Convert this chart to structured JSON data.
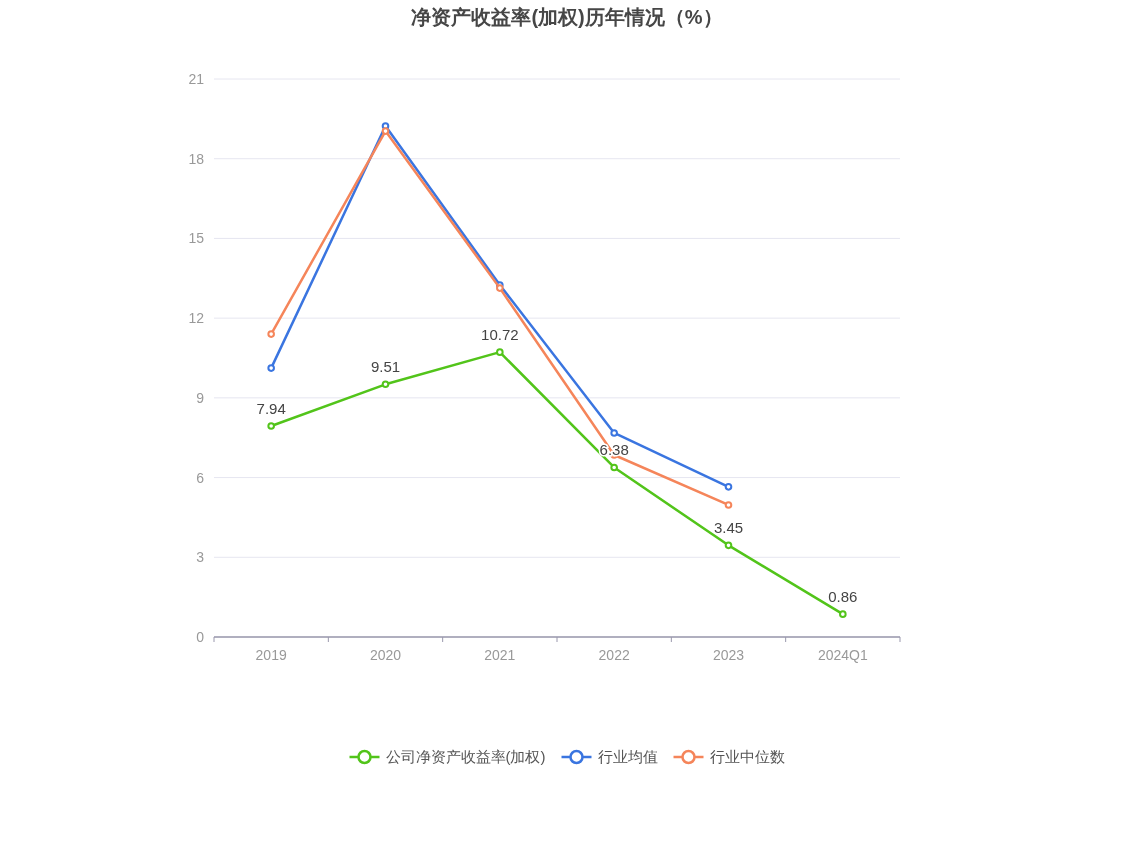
{
  "chart_data": {
    "type": "line",
    "title": "净资产收益率(加权)历年情况（%）",
    "categories": [
      "2019",
      "2020",
      "2021",
      "2022",
      "2023",
      "2024Q1"
    ],
    "ylim": [
      0,
      21
    ],
    "yticks": [
      0,
      3,
      6,
      9,
      12,
      15,
      18,
      21
    ],
    "grid": "y",
    "legend": "bottom",
    "marker": "circle",
    "line_style": "solid",
    "series": [
      {
        "name": "公司净资产收益率(加权)",
        "color": "#52c41a",
        "values": [
          7.94,
          9.51,
          10.72,
          6.38,
          3.45,
          0.86
        ],
        "value_labels": [
          "7.94",
          "9.51",
          "10.72",
          "6.38",
          "3.45",
          "0.86"
        ]
      },
      {
        "name": "行业均值",
        "color": "#3a75e0",
        "values": [
          10.12,
          19.23,
          13.25,
          7.68,
          5.65,
          null
        ]
      },
      {
        "name": "行业中位数",
        "color": "#f5855a",
        "values": [
          11.4,
          19.04,
          13.13,
          6.85,
          4.97,
          null
        ]
      }
    ]
  }
}
